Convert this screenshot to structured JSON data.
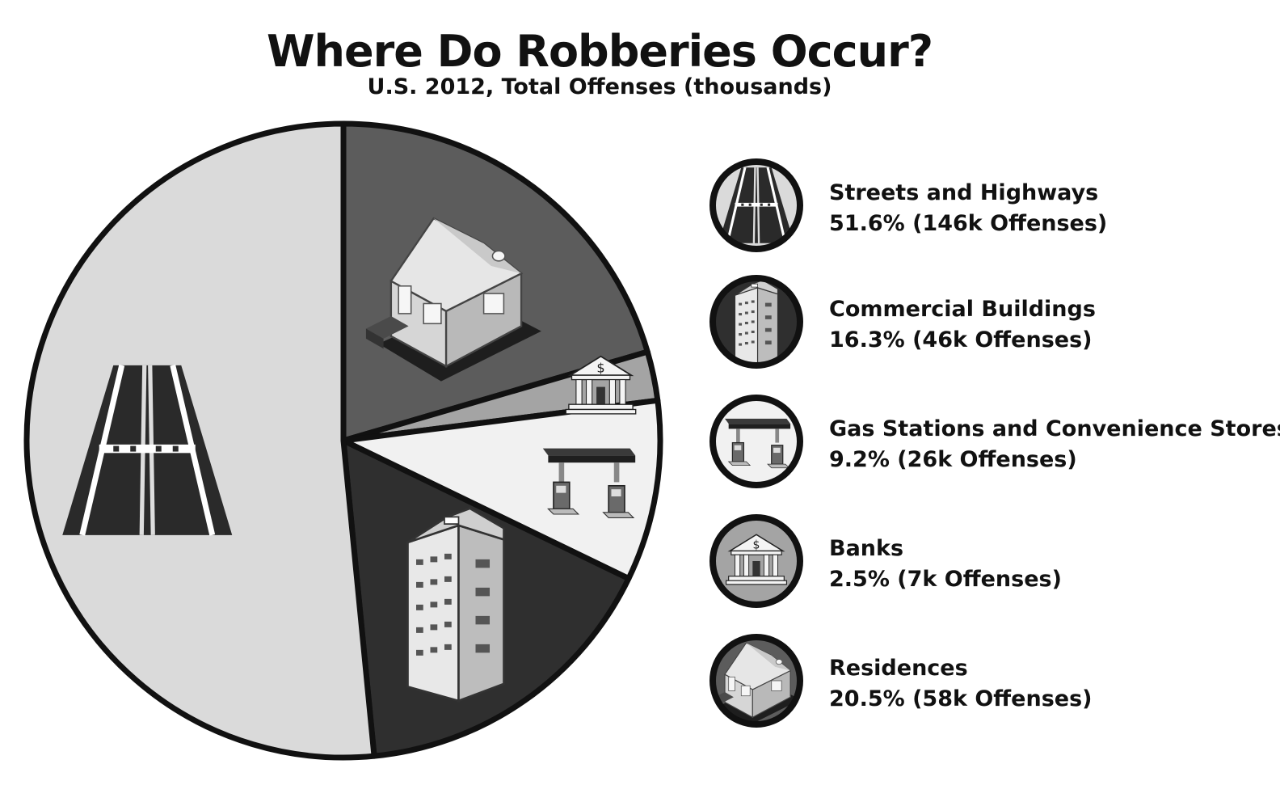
{
  "chart_data": {
    "type": "pie",
    "title": "Where Do Robberies Occur?",
    "subtitle": "U.S. 2012, Total Offenses (thousands)",
    "slices": [
      {
        "name": "Streets and Highways",
        "percent": 51.6,
        "offenses_k": 146,
        "value_label": "51.6% (146k Offenses)",
        "color": "#dadada",
        "icon": "road-icon"
      },
      {
        "name": "Commercial Buildings",
        "percent": 16.3,
        "offenses_k": 46,
        "value_label": "16.3% (46k Offenses)",
        "color": "#2f2f2f",
        "icon": "office-building-icon"
      },
      {
        "name": "Gas Stations and Convenience Stores",
        "percent": 9.2,
        "offenses_k": 26,
        "value_label": "9.2% (26k Offenses)",
        "color": "#f1f1f1",
        "icon": "gas-station-icon"
      },
      {
        "name": "Banks",
        "percent": 2.5,
        "offenses_k": 7,
        "value_label": "2.5% (7k Offenses)",
        "color": "#a4a4a4",
        "icon": "bank-icon"
      },
      {
        "name": "Residences",
        "percent": 20.5,
        "offenses_k": 58,
        "value_label": "20.5% (58k Offenses)",
        "color": "#5c5c5c",
        "icon": "house-icon"
      }
    ],
    "legend_position": "right"
  }
}
